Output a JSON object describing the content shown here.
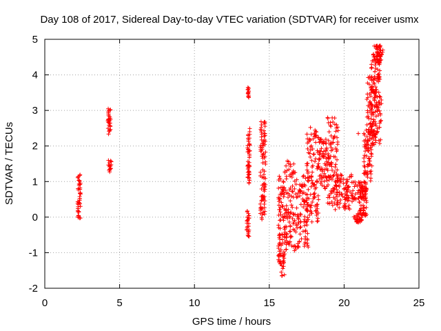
{
  "chart_data": {
    "type": "scatter",
    "title": "Day 108 of 2017, Sidereal Day-to-day VTEC variation (SDTVAR) for receiver usmx",
    "xlabel": "GPS time / hours",
    "ylabel": "SDTVAR / TECUs",
    "xlim": [
      0,
      25
    ],
    "ylim": [
      -2,
      5
    ],
    "xticks": [
      "0",
      "5",
      "10",
      "15",
      "20",
      "25"
    ],
    "yticks": [
      "-2",
      "-1",
      "0",
      "1",
      "2",
      "3",
      "4",
      "5"
    ],
    "grid": true,
    "marker": "plus",
    "color": "#ff0000",
    "segments": [
      {
        "x0": 2.2,
        "x1": 2.4,
        "ymin": -0.05,
        "ymax": 1.2
      },
      {
        "x0": 4.2,
        "x1": 4.4,
        "ymin": 2.2,
        "ymax": 3.05
      },
      {
        "x0": 4.25,
        "x1": 4.45,
        "ymin": 1.25,
        "ymax": 1.6
      },
      {
        "x0": 13.5,
        "x1": 13.65,
        "ymin": -0.55,
        "ymax": 0.2
      },
      {
        "x0": 13.55,
        "x1": 13.7,
        "ymin": 0.95,
        "ymax": 2.5
      },
      {
        "x0": 13.55,
        "x1": 13.65,
        "ymin": 3.3,
        "ymax": 3.65
      },
      {
        "x0": 14.4,
        "x1": 14.75,
        "ymin": -0.1,
        "ymax": 2.7
      },
      {
        "x0": 15.6,
        "x1": 16.05,
        "ymin": -1.65,
        "ymax": 1.15
      },
      {
        "x0": 16.0,
        "x1": 16.8,
        "ymin": -0.95,
        "ymax": 1.6
      },
      {
        "x0": 16.8,
        "x1": 17.6,
        "ymin": -0.85,
        "ymax": 1.2
      },
      {
        "x0": 17.5,
        "x1": 18.3,
        "ymin": -0.2,
        "ymax": 2.5
      },
      {
        "x0": 18.3,
        "x1": 19.0,
        "ymin": 0.8,
        "ymax": 2.2
      },
      {
        "x0": 18.9,
        "x1": 19.6,
        "ymin": 0.3,
        "ymax": 2.8
      },
      {
        "x0": 19.4,
        "x1": 20.5,
        "ymin": 0.2,
        "ymax": 1.2
      },
      {
        "x0": 20.5,
        "x1": 21.5,
        "ymin": 0.4,
        "ymax": 1.0
      },
      {
        "x0": 20.6,
        "x1": 21.2,
        "ymin": -0.15,
        "ymax": 0.1
      },
      {
        "x0": 21.0,
        "x1": 21.5,
        "ymin": 0.0,
        "ymax": 1.0
      },
      {
        "x0": 21.3,
        "x1": 21.9,
        "ymin": 1.0,
        "ymax": 2.5
      },
      {
        "x0": 21.8,
        "x1": 22.5,
        "ymin": 2.0,
        "ymax": 3.6
      },
      {
        "x0": 21.5,
        "x1": 22.1,
        "ymin": 2.3,
        "ymax": 4.0
      },
      {
        "x0": 21.8,
        "x1": 22.45,
        "ymin": 3.5,
        "ymax": 4.85
      },
      {
        "x0": 22.1,
        "x1": 22.6,
        "ymin": 4.3,
        "ymax": 4.85
      }
    ],
    "highlights": [
      {
        "x": 17.75,
        "y": 2.52
      },
      {
        "x": 18.9,
        "y": 2.8
      },
      {
        "x": 19.0,
        "y": 2.4
      },
      {
        "x": 18.1,
        "y": 2.1
      },
      {
        "x": 16.3,
        "y": 1.5
      },
      {
        "x": 22.4,
        "y": 4.8
      },
      {
        "x": 20.95,
        "y": 2.35
      }
    ]
  }
}
